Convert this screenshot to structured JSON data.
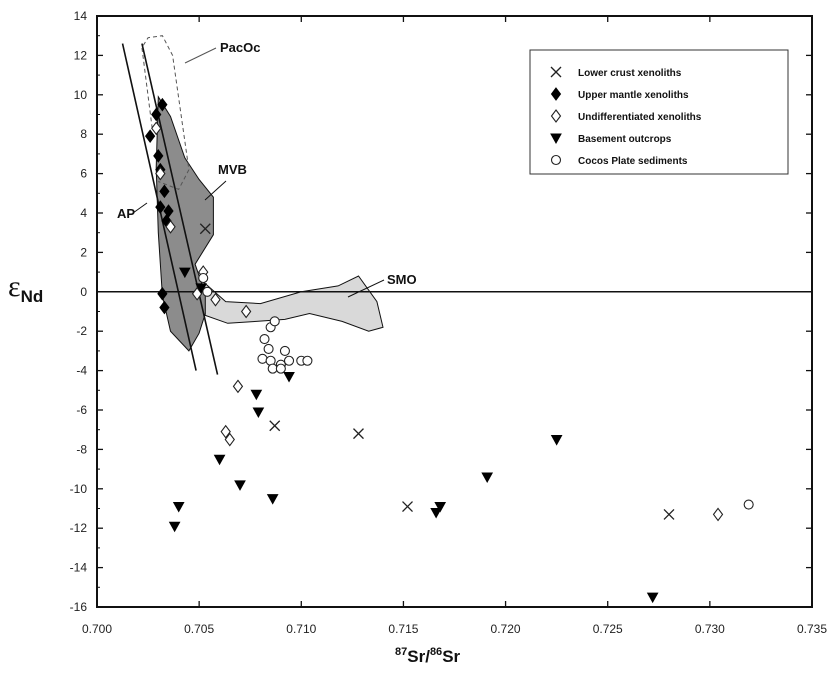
{
  "chart_data": {
    "type": "scatter",
    "title": "",
    "xlabel": {
      "sup1": "87",
      "t1": "Sr/",
      "sup2": "86",
      "t2": "Sr"
    },
    "ylabel": {
      "main": "ε",
      "sub": "Nd"
    },
    "xlim": [
      0.7,
      0.735
    ],
    "ylim": [
      -16,
      14
    ],
    "xticks": [
      "0.700",
      "0.705",
      "0.710",
      "0.715",
      "0.720",
      "0.725",
      "0.730",
      "0.735"
    ],
    "yticks": [
      "14",
      "12",
      "10",
      "8",
      "6",
      "4",
      "2",
      "0",
      "-2",
      "-4",
      "-6",
      "-8",
      "-10",
      "-12",
      "-14",
      "-16"
    ],
    "legend_position": "top-right",
    "series": [
      {
        "name": "Lower crust xenoliths",
        "marker": "x",
        "points": [
          [
            0.7053,
            3.2
          ],
          [
            0.7087,
            -6.8
          ],
          [
            0.7128,
            -7.2
          ],
          [
            0.7152,
            -10.9
          ],
          [
            0.728,
            -11.3
          ]
        ]
      },
      {
        "name": "Upper mantle xenoliths",
        "marker": "diamond-filled",
        "points": [
          [
            0.7032,
            9.5
          ],
          [
            0.7029,
            9.0
          ],
          [
            0.7026,
            7.9
          ],
          [
            0.703,
            6.9
          ],
          [
            0.7031,
            6.2
          ],
          [
            0.7033,
            5.1
          ],
          [
            0.7031,
            4.3
          ],
          [
            0.7035,
            4.1
          ],
          [
            0.7034,
            3.6
          ],
          [
            0.7032,
            -0.1
          ],
          [
            0.7033,
            -0.8
          ]
        ]
      },
      {
        "name": "Undifferentiated xenoliths",
        "marker": "diamond-open",
        "points": [
          [
            0.7029,
            8.3
          ],
          [
            0.7031,
            6.0
          ],
          [
            0.7036,
            3.3
          ],
          [
            0.7052,
            1.0
          ],
          [
            0.7049,
            -0.1
          ],
          [
            0.7058,
            -0.4
          ],
          [
            0.7073,
            -1.0
          ],
          [
            0.7069,
            -4.8
          ],
          [
            0.7063,
            -7.1
          ],
          [
            0.7065,
            -7.5
          ],
          [
            0.7304,
            -11.3
          ]
        ]
      },
      {
        "name": "Basement outcrops",
        "marker": "triangle-down",
        "points": [
          [
            0.7043,
            1.0
          ],
          [
            0.7051,
            0.2
          ],
          [
            0.7094,
            -4.3
          ],
          [
            0.7078,
            -5.2
          ],
          [
            0.7079,
            -6.1
          ],
          [
            0.706,
            -8.5
          ],
          [
            0.704,
            -10.9
          ],
          [
            0.7038,
            -11.9
          ],
          [
            0.707,
            -9.8
          ],
          [
            0.7086,
            -10.5
          ],
          [
            0.7168,
            -10.9
          ],
          [
            0.7166,
            -11.2
          ],
          [
            0.7191,
            -9.4
          ],
          [
            0.7225,
            -7.5
          ],
          [
            0.7272,
            -15.5
          ]
        ]
      },
      {
        "name": "Cocos Plate sediments",
        "marker": "circle-open",
        "points": [
          [
            0.7052,
            0.7
          ],
          [
            0.7054,
            0.0
          ],
          [
            0.7082,
            -2.4
          ],
          [
            0.7084,
            -2.9
          ],
          [
            0.7081,
            -3.4
          ],
          [
            0.7085,
            -3.5
          ],
          [
            0.709,
            -3.7
          ],
          [
            0.7094,
            -3.5
          ],
          [
            0.71,
            -3.5
          ],
          [
            0.7103,
            -3.5
          ],
          [
            0.7086,
            -3.9
          ],
          [
            0.709,
            -3.9
          ],
          [
            0.7085,
            -1.8
          ],
          [
            0.7087,
            -1.5
          ],
          [
            0.7092,
            -3.0
          ],
          [
            0.7319,
            -10.8
          ]
        ]
      }
    ],
    "regions": [
      {
        "label": "PacOc",
        "style": "dashed"
      },
      {
        "label": "MVB",
        "style": "dark-fill"
      },
      {
        "label": "AP",
        "style": "lines"
      },
      {
        "label": "SMO",
        "style": "light-fill"
      }
    ],
    "colors": {
      "dark_fill": "#8c8c8c",
      "light_fill": "#d9d9d9",
      "ink": "#111111"
    }
  }
}
